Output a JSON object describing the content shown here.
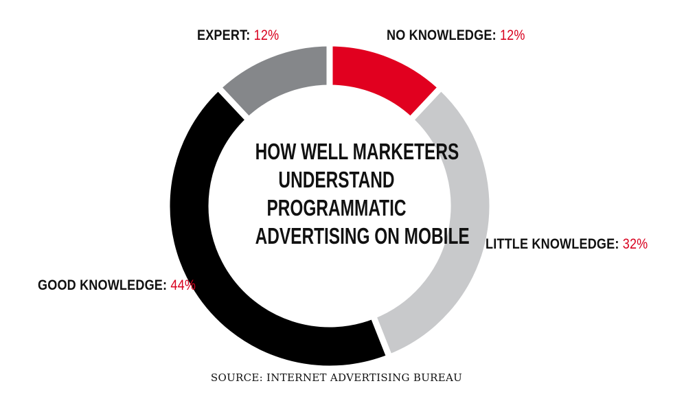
{
  "chart_data": {
    "type": "pie",
    "title_lines": [
      "HOW WELL MARKETERS",
      "UNDERSTAND",
      "PROGRAMMATIC",
      "ADVERTISING ON MOBILE"
    ],
    "slices": [
      {
        "label": "NO KNOWLEDGE:",
        "value": 12,
        "display": "12%",
        "color": "#e1001f"
      },
      {
        "label": "LITTLE KNOWLEDGE:",
        "value": 32,
        "display": "32%",
        "color": "#c8c9cb"
      },
      {
        "label": "GOOD KNOWLEDGE:",
        "value": 44,
        "display": "44%",
        "color": "#000000"
      },
      {
        "label": "EXPERT:",
        "value": 12,
        "display": "12%",
        "color": "#85878a"
      }
    ],
    "source": "SOURCE: INTERNET ADVERTISING BUREAU"
  }
}
